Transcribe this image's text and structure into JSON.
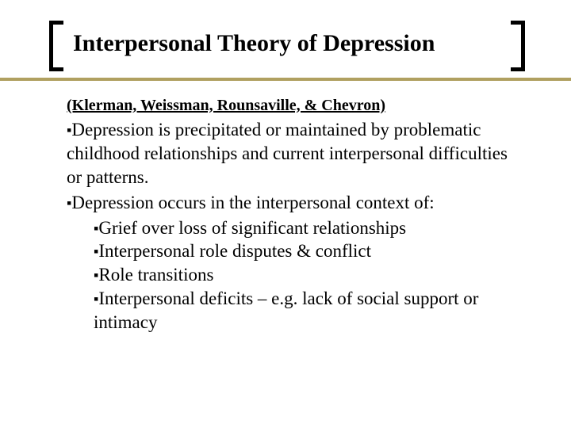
{
  "title": "Interpersonal Theory of Depression",
  "authors": "(Klerman, Weissman, Rounsaville, & Chevron)",
  "bullet1": "Depression is precipitated or maintained by problematic childhood relationships and current interpersonal difficulties or patterns.",
  "bullet2": "Depression occurs in the interpersonal context of:",
  "sub1": "Grief over loss of significant relationships",
  "sub2": "Interpersonal role disputes & conflict",
  "sub3": "Role transitions",
  "sub4": "Interpersonal deficits – e.g. lack of social support or intimacy",
  "colors": {
    "background": "#ffffff",
    "text": "#000000",
    "accent_line": "#b0a060",
    "bracket": "#000000"
  },
  "typography": {
    "title_fontsize": 30,
    "authors_fontsize": 20,
    "body_fontsize": 23,
    "font_family": "serif"
  },
  "bullet_glyph": "▪"
}
